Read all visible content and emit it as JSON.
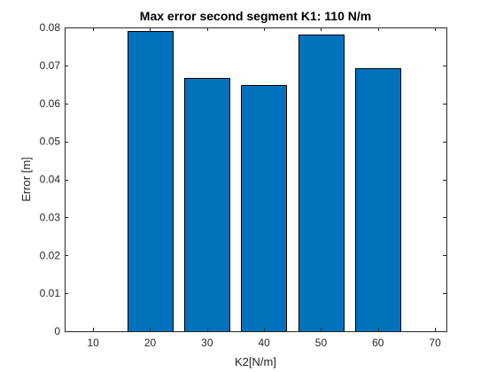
{
  "chart_data": {
    "type": "bar",
    "title": "Max error second segment K1: 110 N/m",
    "xlabel": "K2[N/m]",
    "ylabel": "Error [m]",
    "x": [
      20,
      30,
      40,
      50,
      60
    ],
    "values": [
      0.079,
      0.0668,
      0.0648,
      0.0782,
      0.0692
    ],
    "xlim": [
      5,
      72
    ],
    "ylim": [
      0,
      0.08
    ],
    "xticks": [
      10,
      20,
      30,
      40,
      50,
      60,
      70
    ],
    "yticks": [
      0,
      0.01,
      0.02,
      0.03,
      0.04,
      0.05,
      0.06,
      0.07,
      0.08
    ],
    "xtick_labels": [
      "10",
      "20",
      "30",
      "40",
      "50",
      "60",
      "70"
    ],
    "ytick_labels": [
      "0",
      "0.01",
      "0.02",
      "0.03",
      "0.04",
      "0.05",
      "0.06",
      "0.07",
      "0.08"
    ],
    "bar_color": "#0072BD",
    "grid": false,
    "box": true
  }
}
